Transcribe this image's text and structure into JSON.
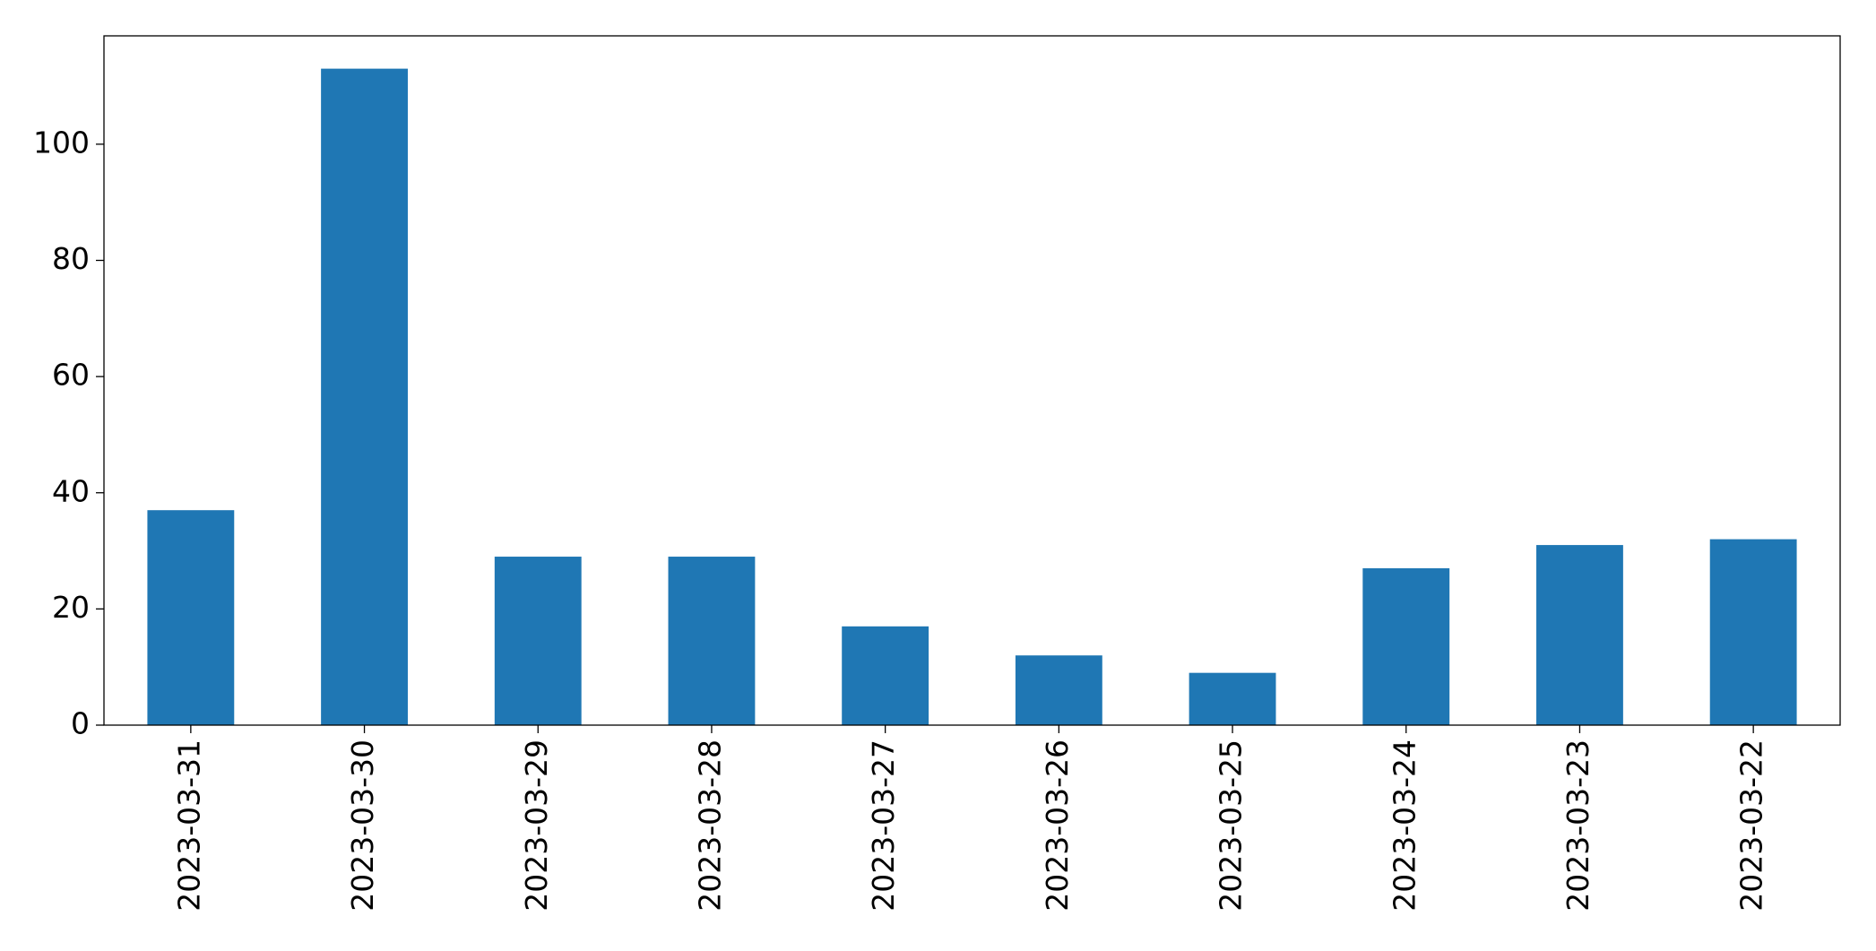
{
  "chart_data": {
    "type": "bar",
    "categories": [
      "2023-03-31",
      "2023-03-30",
      "2023-03-29",
      "2023-03-28",
      "2023-03-27",
      "2023-03-26",
      "2023-03-25",
      "2023-03-24",
      "2023-03-23",
      "2023-03-22"
    ],
    "values": [
      37,
      113,
      29,
      29,
      17,
      12,
      9,
      27,
      31,
      32
    ],
    "color": "#1f77b4",
    "ylim": [
      0,
      118.65
    ],
    "yticks": [
      0,
      20,
      40,
      60,
      80,
      100
    ],
    "grid": false
  }
}
